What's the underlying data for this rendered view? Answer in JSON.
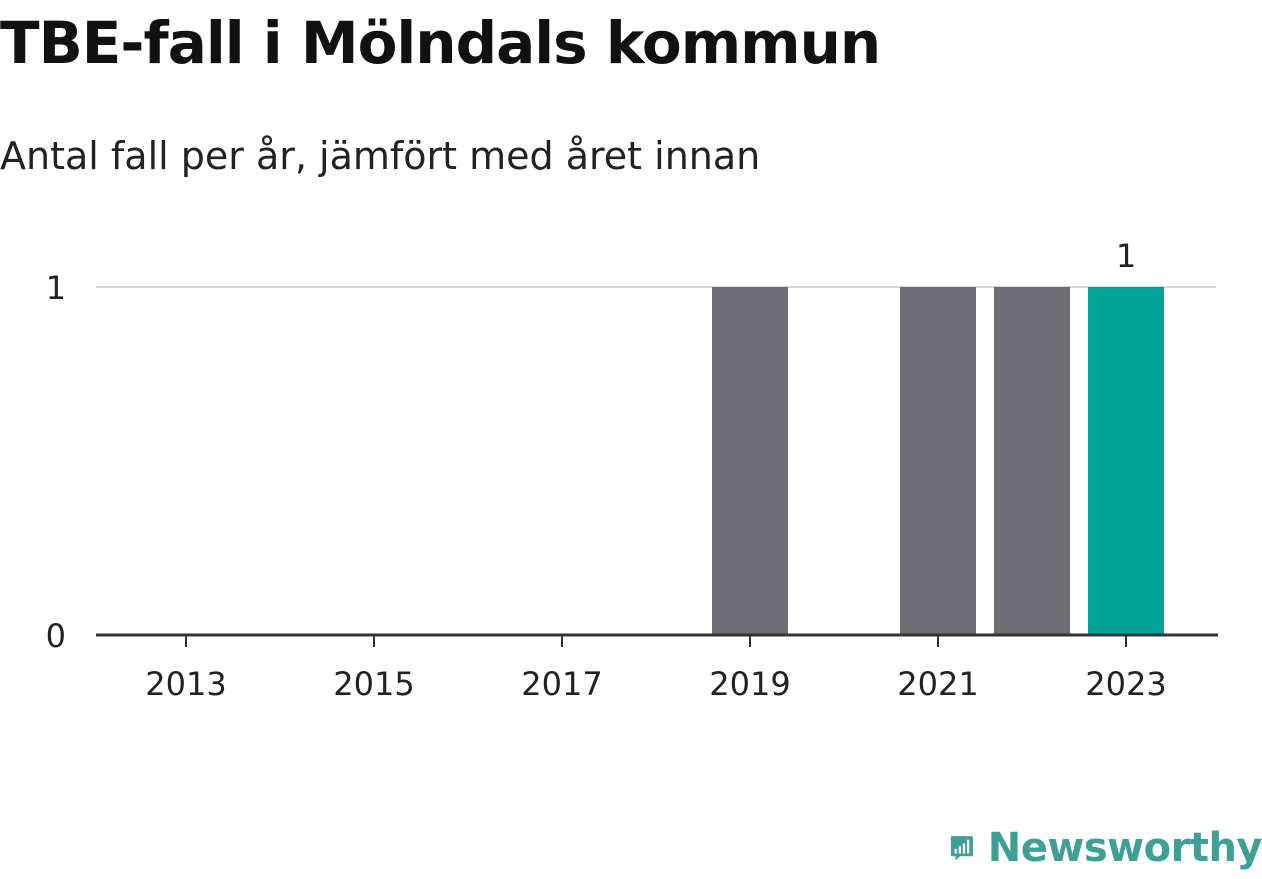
{
  "header": {
    "title": "TBE-fall i Mölndals kommun",
    "subtitle": "Antal fall per år, jämfört med året innan"
  },
  "chart_data": {
    "type": "bar",
    "title": "TBE-fall i Mölndals kommun",
    "subtitle": "Antal fall per år, jämfört med året innan",
    "categories": [
      "2013",
      "2014",
      "2015",
      "2016",
      "2017",
      "2018",
      "2019",
      "2020",
      "2021",
      "2022",
      "2023"
    ],
    "values": [
      0,
      0,
      0,
      0,
      0,
      0,
      1,
      0,
      1,
      1,
      1
    ],
    "highlight_category": "2023",
    "data_labels": [
      {
        "category": "2023",
        "label": "1"
      }
    ],
    "x_tick_labels": [
      "2013",
      "2015",
      "2017",
      "2019",
      "2021",
      "2023"
    ],
    "y_ticks": [
      0,
      1
    ],
    "ylim": [
      0,
      1
    ],
    "xlabel": "",
    "ylabel": "",
    "grid": true,
    "legend": "none",
    "colors": {
      "bar": "#6e6d74",
      "highlight": "#00a296",
      "axis": "#333333",
      "grid": "#d8d8d8",
      "text": "#222222"
    }
  },
  "brand": {
    "name": "Newsworthy",
    "icon": "newsworthy-logo-icon",
    "color": "#3f9e96"
  }
}
